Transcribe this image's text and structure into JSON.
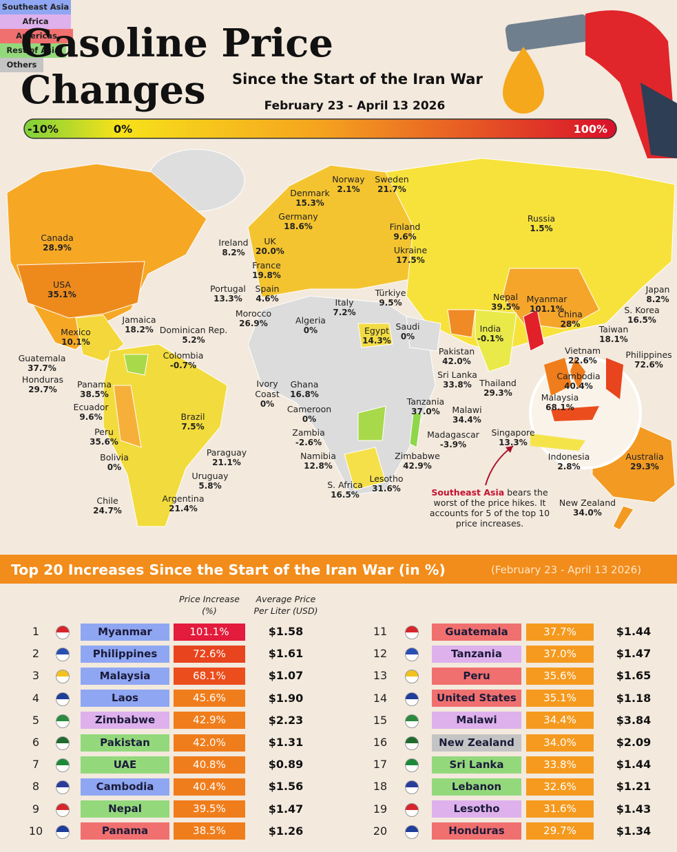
{
  "header": {
    "title_line1": "Gasoline Price",
    "title_line2": "Changes",
    "subtitle": "Since the Start of the Iran War",
    "date_range": "February 23 - April 13 2026"
  },
  "scale": {
    "min_label": "-10%",
    "mid_label": "0%",
    "max_label": "100%"
  },
  "map": {
    "labels": [
      {
        "name": "Canada",
        "value": "28.9%"
      },
      {
        "name": "USA",
        "value": "35.1%"
      },
      {
        "name": "Mexico",
        "value": "10.1%"
      },
      {
        "name": "Jamaica",
        "value": "18.2%"
      },
      {
        "name": "Dominican Rep.",
        "value": "5.2%"
      },
      {
        "name": "Guatemala",
        "value": "37.7%"
      },
      {
        "name": "Honduras",
        "value": "29.7%"
      },
      {
        "name": "Panama",
        "value": "38.5%"
      },
      {
        "name": "Colombia",
        "value": "-0.7%"
      },
      {
        "name": "Ecuador",
        "value": "9.6%"
      },
      {
        "name": "Peru",
        "value": "35.6%"
      },
      {
        "name": "Bolivia",
        "value": "0%"
      },
      {
        "name": "Brazil",
        "value": "7.5%"
      },
      {
        "name": "Paraguay",
        "value": "21.1%"
      },
      {
        "name": "Uruguay",
        "value": "5.8%"
      },
      {
        "name": "Argentina",
        "value": "21.4%"
      },
      {
        "name": "Chile",
        "value": "24.7%"
      },
      {
        "name": "Ireland",
        "value": "8.2%"
      },
      {
        "name": "UK",
        "value": "20.0%"
      },
      {
        "name": "France",
        "value": "19.8%"
      },
      {
        "name": "Portugal",
        "value": "13.3%"
      },
      {
        "name": "Spain",
        "value": "4.6%"
      },
      {
        "name": "Morocco",
        "value": "26.9%"
      },
      {
        "name": "Denmark",
        "value": "15.3%"
      },
      {
        "name": "Germany",
        "value": "18.6%"
      },
      {
        "name": "Norway",
        "value": "2.1%"
      },
      {
        "name": "Sweden",
        "value": "21.7%"
      },
      {
        "name": "Finland",
        "value": "9.6%"
      },
      {
        "name": "Ukraine",
        "value": "17.5%"
      },
      {
        "name": "Italy",
        "value": "7.2%"
      },
      {
        "name": "Türkiye",
        "value": "9.5%"
      },
      {
        "name": "Algeria",
        "value": "0%"
      },
      {
        "name": "Egypt",
        "value": "14.3%"
      },
      {
        "name": "Saudi",
        "value": "0%"
      },
      {
        "name": "Ivory Coast",
        "value": "0%"
      },
      {
        "name": "Ghana",
        "value": "16.8%"
      },
      {
        "name": "Cameroon",
        "value": "0%"
      },
      {
        "name": "Zambia",
        "value": "-2.6%"
      },
      {
        "name": "Namibia",
        "value": "12.8%"
      },
      {
        "name": "S. Africa",
        "value": "16.5%"
      },
      {
        "name": "Lesotho",
        "value": "31.6%"
      },
      {
        "name": "Zimbabwe",
        "value": "42.9%"
      },
      {
        "name": "Tanzania",
        "value": "37.0%"
      },
      {
        "name": "Malawi",
        "value": "34.4%"
      },
      {
        "name": "Madagascar",
        "value": "-3.9%"
      },
      {
        "name": "Pakistan",
        "value": "42.0%"
      },
      {
        "name": "Sri Lanka",
        "value": "33.8%"
      },
      {
        "name": "India",
        "value": "-0.1%"
      },
      {
        "name": "Nepal",
        "value": "39.5%"
      },
      {
        "name": "Myanmar",
        "value": "101.1%"
      },
      {
        "name": "China",
        "value": "28%"
      },
      {
        "name": "Japan",
        "value": "8.2%"
      },
      {
        "name": "S. Korea",
        "value": "16.5%"
      },
      {
        "name": "Taiwan",
        "value": "18.1%"
      },
      {
        "name": "Russia",
        "value": "1.5%"
      },
      {
        "name": "Thailand",
        "value": "29.3%"
      },
      {
        "name": "Vietnam",
        "value": "22.6%"
      },
      {
        "name": "Philippines",
        "value": "72.6%"
      },
      {
        "name": "Cambodia",
        "value": "40.4%"
      },
      {
        "name": "Malaysia",
        "value": "68.1%"
      },
      {
        "name": "Singapore",
        "value": "13.3%"
      },
      {
        "name": "Indonesia",
        "value": "2.8%"
      },
      {
        "name": "Australia",
        "value": "29.3%"
      },
      {
        "name": "New Zealand",
        "value": "34.0%"
      }
    ]
  },
  "annotation": {
    "highlight": "Southeast Asia",
    "text": "bears the worst of the price hikes. It accounts for 5 of the top 10 price increases."
  },
  "table": {
    "title": "Top 20 Increases Since the Start of the Iran War (in %)",
    "date_range": "(February 23 - April 13 2026)",
    "columns": [
      "Price Increase (%)",
      "Average Price Per Liter (USD)"
    ],
    "regions": [
      {
        "name": "Southeast Asia",
        "color": "#8fa6f2"
      },
      {
        "name": "Africa",
        "color": "#deb1ec"
      },
      {
        "name": "Americas",
        "color": "#f0706f"
      },
      {
        "name": "Rest of Asia",
        "color": "#93d97c"
      },
      {
        "name": "Others",
        "color": "#c4c4c4"
      }
    ],
    "rows": [
      {
        "rank": 1,
        "country": "Myanmar",
        "color": "#8fa6f2",
        "change": "101.1%",
        "change_color": "#e31b3c",
        "price": "$1.58"
      },
      {
        "rank": 2,
        "country": "Philippines",
        "color": "#8fa6f2",
        "change": "72.6%",
        "change_color": "#e8441e",
        "price": "$1.61"
      },
      {
        "rank": 3,
        "country": "Malaysia",
        "color": "#8fa6f2",
        "change": "68.1%",
        "change_color": "#eb4d1d",
        "price": "$1.07"
      },
      {
        "rank": 4,
        "country": "Laos",
        "color": "#8fa6f2",
        "change": "45.6%",
        "change_color": "#f07d1c",
        "price": "$1.90"
      },
      {
        "rank": 5,
        "country": "Zimbabwe",
        "color": "#deb1ec",
        "change": "42.9%",
        "change_color": "#f07d1c",
        "price": "$2.23"
      },
      {
        "rank": 6,
        "country": "Pakistan",
        "color": "#93d97c",
        "change": "42.0%",
        "change_color": "#f07d1c",
        "price": "$1.31"
      },
      {
        "rank": 7,
        "country": "UAE",
        "color": "#93d97c",
        "change": "40.8%",
        "change_color": "#f07d1c",
        "price": "$0.89"
      },
      {
        "rank": 8,
        "country": "Cambodia",
        "color": "#8fa6f2",
        "change": "40.4%",
        "change_color": "#f07d1c",
        "price": "$1.56"
      },
      {
        "rank": 9,
        "country": "Nepal",
        "color": "#93d97c",
        "change": "39.5%",
        "change_color": "#f07d1c",
        "price": "$1.47"
      },
      {
        "rank": 10,
        "country": "Panama",
        "color": "#f0706f",
        "change": "38.5%",
        "change_color": "#f07d1c",
        "price": "$1.26"
      },
      {
        "rank": 11,
        "country": "Guatemala",
        "color": "#f0706f",
        "change": "37.7%",
        "change_color": "#f59a1e",
        "price": "$1.44"
      },
      {
        "rank": 12,
        "country": "Tanzania",
        "color": "#deb1ec",
        "change": "37.0%",
        "change_color": "#f59a1e",
        "price": "$1.47"
      },
      {
        "rank": 13,
        "country": "Peru",
        "color": "#f0706f",
        "change": "35.6%",
        "change_color": "#f59a1e",
        "price": "$1.65"
      },
      {
        "rank": 14,
        "country": "United States",
        "color": "#f0706f",
        "change": "35.1%",
        "change_color": "#f59a1e",
        "price": "$1.18"
      },
      {
        "rank": 15,
        "country": "Malawi",
        "color": "#deb1ec",
        "change": "34.4%",
        "change_color": "#f59a1e",
        "price": "$3.84"
      },
      {
        "rank": 16,
        "country": "New Zealand",
        "color": "#c4c4c4",
        "change": "34.0%",
        "change_color": "#f59a1e",
        "price": "$2.09"
      },
      {
        "rank": 17,
        "country": "Sri Lanka",
        "color": "#93d97c",
        "change": "33.8%",
        "change_color": "#f59a1e",
        "price": "$1.44"
      },
      {
        "rank": 18,
        "country": "Lebanon",
        "color": "#93d97c",
        "change": "32.6%",
        "change_color": "#f59a1e",
        "price": "$1.21"
      },
      {
        "rank": 19,
        "country": "Lesotho",
        "color": "#deb1ec",
        "change": "31.6%",
        "change_color": "#f59a1e",
        "price": "$1.43"
      },
      {
        "rank": 20,
        "country": "Honduras",
        "color": "#f0706f",
        "change": "29.7%",
        "change_color": "#f59a1e",
        "price": "$1.34"
      }
    ]
  }
}
